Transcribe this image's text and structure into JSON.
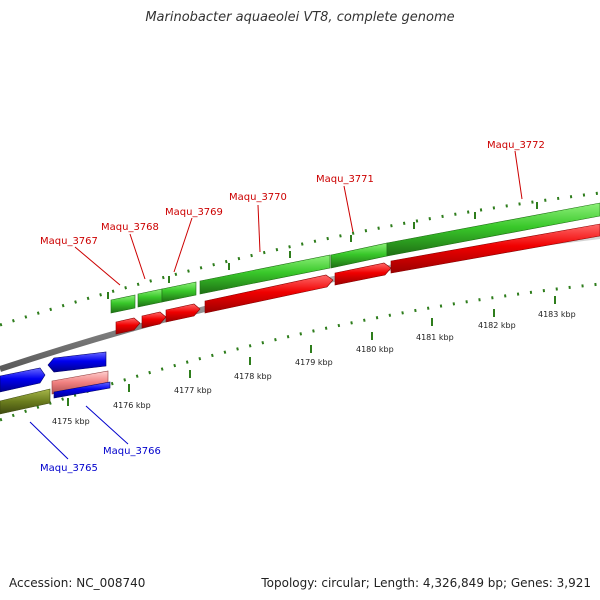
{
  "title": "Marinobacter aquaeolei VT8, complete genome",
  "footer": {
    "accession": "Accession: NC_008740",
    "summary": "Topology: circular; Length: 4,326,849 bp; Genes: 3,921"
  },
  "colors": {
    "forward_label": "#cc0000",
    "reverse_label": "#0000cc",
    "tick": "#2e7d1c",
    "backbone": "#888888"
  },
  "kbp_ticks": [
    "4175 kbp",
    "4176 kbp",
    "4177 kbp",
    "4178 kbp",
    "4179 kbp",
    "4180 kbp",
    "4181 kbp",
    "4182 kbp",
    "4183 kbp"
  ],
  "genes": {
    "forward": [
      {
        "label": "Maqu_3767"
      },
      {
        "label": "Maqu_3768"
      },
      {
        "label": "Maqu_3769"
      },
      {
        "label": "Maqu_3770"
      },
      {
        "label": "Maqu_3771"
      },
      {
        "label": "Maqu_3772"
      }
    ],
    "reverse": [
      {
        "label": "Maqu_3765"
      },
      {
        "label": "Maqu_3766"
      }
    ]
  }
}
